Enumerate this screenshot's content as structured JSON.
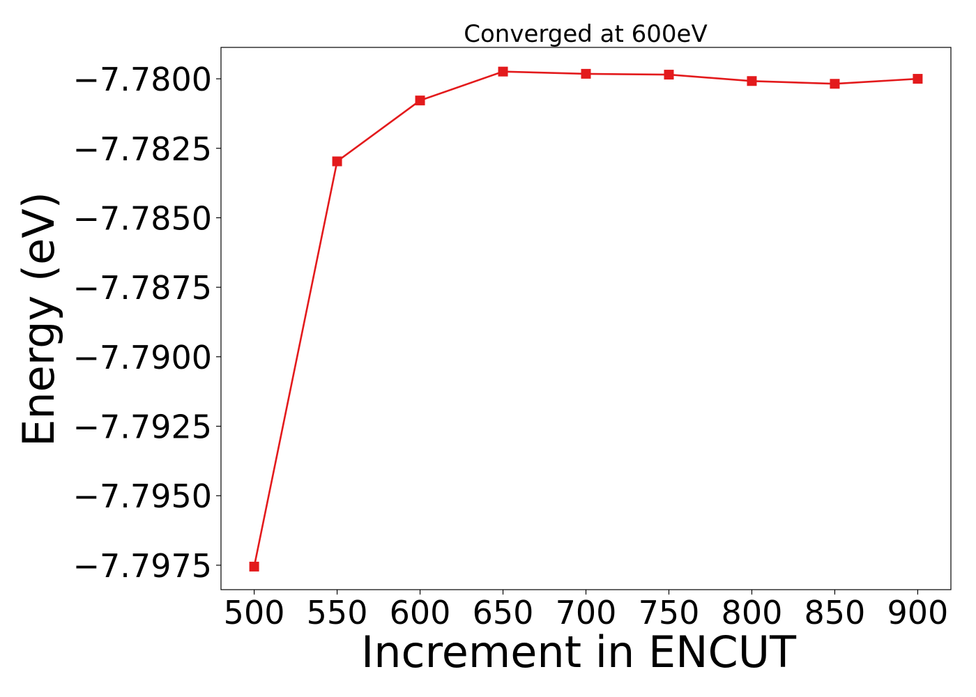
{
  "chart_data": {
    "type": "line",
    "title": "Converged at 600eV",
    "xlabel": "Increment in ENCUT",
    "ylabel": "Energy (eV)",
    "x": [
      500,
      550,
      600,
      650,
      700,
      750,
      800,
      850,
      900
    ],
    "series": [
      {
        "values": [
          -7.79755,
          -7.78297,
          -7.78078,
          -7.77974,
          -7.77982,
          -7.77985,
          -7.78008,
          -7.78018,
          -7.78
        ],
        "color": "#e31a1c",
        "marker": "square"
      }
    ],
    "xticks": [
      500,
      550,
      600,
      650,
      700,
      750,
      800,
      850,
      900
    ],
    "yticks": [
      -7.7975,
      -7.795,
      -7.7925,
      -7.79,
      -7.7875,
      -7.785,
      -7.7825,
      -7.78
    ],
    "ytick_labels": [
      "−7.7975",
      "−7.7950",
      "−7.7925",
      "−7.7900",
      "−7.7875",
      "−7.7850",
      "−7.7825",
      "−7.7800"
    ],
    "xlim": [
      480,
      920
    ],
    "ylim": [
      -7.79838,
      -7.77887
    ],
    "grid": false,
    "legend": false
  }
}
